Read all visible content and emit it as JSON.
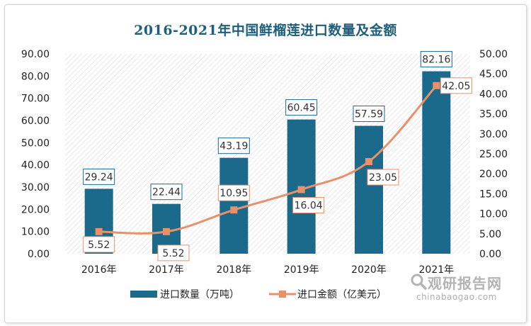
{
  "colors": {
    "bar": "#1b6a8c",
    "bar_label_border": "#1b6a8c",
    "line": "#e8906a",
    "line_label_border": "#e8906a",
    "title": "#1e5f7c"
  },
  "chart_data": {
    "type": "bar",
    "title": "2016-2021年中国鲜榴莲进口数量及金额",
    "categories": [
      "2016年",
      "2017年",
      "2018年",
      "2019年",
      "2020年",
      "2021年"
    ],
    "series": [
      {
        "name": "进口数量（万吨）",
        "type": "bar",
        "axis": "left",
        "values": [
          29.24,
          22.44,
          43.19,
          60.45,
          57.59,
          82.16
        ],
        "labels": [
          "29.24",
          "22.44",
          "43.19",
          "60.45",
          "57.59",
          "82.16"
        ]
      },
      {
        "name": "进口金额（亿美元）",
        "type": "line",
        "axis": "right",
        "values": [
          5.52,
          5.52,
          10.95,
          16.04,
          23.05,
          42.05
        ],
        "labels": [
          "5.52",
          "5.52",
          "10.95",
          "16.04",
          "23.05",
          "42.05"
        ]
      }
    ],
    "y_left": {
      "range": [
        0,
        90
      ],
      "ticks": [
        "0.00",
        "10.00",
        "20.00",
        "30.00",
        "40.00",
        "50.00",
        "60.00",
        "70.00",
        "80.00",
        "90.00"
      ]
    },
    "y_right": {
      "range": [
        0,
        50
      ],
      "ticks": [
        "0.00",
        "5.00",
        "10.00",
        "15.00",
        "20.00",
        "25.00",
        "30.00",
        "35.00",
        "40.00",
        "45.00",
        "50.00"
      ]
    },
    "grid": false,
    "background_pattern": "diagonal-hatch",
    "legend_position": "bottom"
  },
  "watermark": {
    "text": "观研报告网",
    "url": "chinabaogao.com",
    "icon": "magnifier-icon"
  }
}
